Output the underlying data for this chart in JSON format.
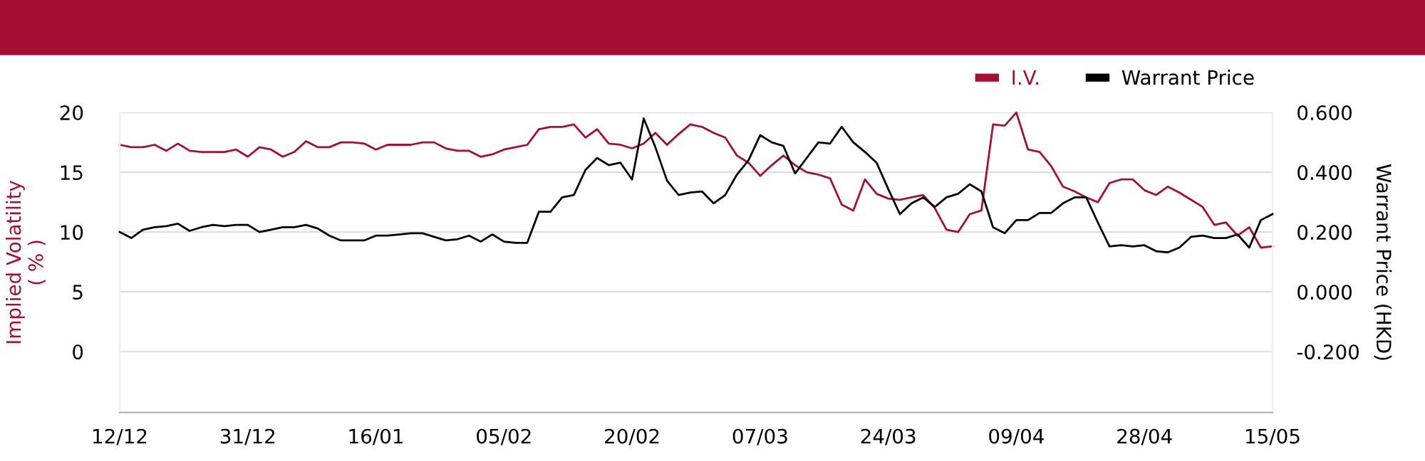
{
  "chart_data": {
    "type": "line",
    "ylabel": "Implied Volatility\n( % )",
    "y2label": "Warrant Price (HKD)",
    "categories": [
      "12/12",
      null,
      null,
      null,
      null,
      null,
      null,
      null,
      null,
      null,
      null,
      "31/12",
      null,
      null,
      null,
      null,
      null,
      null,
      null,
      null,
      null,
      null,
      "16/01",
      null,
      null,
      null,
      null,
      null,
      null,
      null,
      null,
      null,
      null,
      "05/02",
      null,
      null,
      null,
      null,
      null,
      null,
      null,
      null,
      null,
      null,
      "20/02",
      null,
      null,
      null,
      null,
      null,
      null,
      null,
      null,
      null,
      null,
      "07/03",
      null,
      null,
      null,
      null,
      null,
      null,
      null,
      null,
      null,
      null,
      "24/03",
      null,
      null,
      null,
      null,
      null,
      null,
      null,
      null,
      null,
      null,
      "09/04",
      null,
      null,
      null,
      null,
      null,
      null,
      null,
      null,
      null,
      null,
      "28/04",
      null,
      null,
      null,
      null,
      null,
      null,
      null,
      null,
      null,
      null,
      "15/05"
    ],
    "series": [
      {
        "name": "I.V.",
        "color": "#a50f34",
        "values": [
          17.3,
          17.1,
          17.1,
          17.3,
          16.8,
          17.4,
          16.8,
          16.7,
          16.7,
          16.7,
          16.9,
          16.3,
          17.1,
          16.9,
          16.3,
          16.7,
          17.6,
          17.1,
          17.1,
          17.5,
          17.5,
          17.4,
          16.9,
          17.3,
          17.3,
          17.3,
          17.5,
          17.5,
          17.0,
          16.8,
          16.8,
          16.3,
          16.5,
          16.9,
          17.1,
          17.3,
          18.6,
          18.8,
          18.8,
          19.0,
          17.9,
          18.6,
          17.4,
          17.3,
          17.0,
          17.4,
          18.3,
          17.3,
          18.2,
          19.0,
          18.8,
          18.3,
          17.9,
          16.4,
          15.8,
          14.7,
          15.6,
          16.4,
          15.6,
          15.0,
          14.8,
          14.5,
          12.3,
          11.8,
          14.4,
          13.2,
          12.8,
          12.7,
          12.9,
          13.1,
          12.0,
          10.2,
          10.0,
          11.5,
          11.8,
          19.0,
          18.9,
          20.0,
          16.9,
          16.7,
          15.5,
          13.8,
          13.4,
          12.9,
          12.5,
          14.1,
          14.4,
          14.4,
          13.5,
          13.1,
          13.8,
          13.3,
          12.7,
          12.1,
          10.6,
          10.8,
          9.7,
          10.4,
          8.7,
          8.8
        ]
      },
      {
        "name": "Warrant Price",
        "color": "#000000",
        "axis": "y2",
        "values": [
          0.2,
          0.18,
          0.208,
          0.216,
          0.22,
          0.228,
          0.204,
          0.216,
          0.224,
          0.22,
          0.224,
          0.224,
          0.2,
          0.208,
          0.216,
          0.216,
          0.224,
          0.212,
          0.188,
          0.172,
          0.172,
          0.172,
          0.188,
          0.188,
          0.192,
          0.196,
          0.196,
          0.184,
          0.172,
          0.176,
          0.188,
          0.168,
          0.192,
          0.168,
          0.164,
          0.164,
          0.268,
          0.268,
          0.316,
          0.324,
          0.408,
          0.448,
          0.424,
          0.432,
          0.376,
          0.58,
          0.484,
          0.372,
          0.324,
          0.332,
          0.336,
          0.296,
          0.324,
          0.392,
          0.44,
          0.524,
          0.5,
          0.488,
          0.396,
          0.448,
          0.5,
          0.496,
          0.552,
          0.5,
          0.468,
          0.432,
          0.344,
          0.26,
          0.296,
          0.316,
          0.284,
          0.316,
          0.328,
          0.36,
          0.336,
          0.216,
          0.196,
          0.24,
          0.24,
          0.264,
          0.264,
          0.296,
          0.316,
          0.316,
          0.232,
          0.152,
          0.156,
          0.152,
          0.156,
          0.136,
          0.132,
          0.148,
          0.184,
          0.188,
          0.18,
          0.18,
          0.192,
          0.148,
          0.24,
          0.26
        ]
      }
    ],
    "ylim": [
      -5.1,
      20
    ],
    "yticks": [
      0,
      5,
      10,
      15,
      20
    ],
    "y2lim": [
      -0.404,
      0.6
    ],
    "y2ticks": [
      {
        "value": -0.2,
        "label": "-0.200"
      },
      {
        "value": 0,
        "label": "0.000"
      },
      {
        "value": 0.2,
        "label": "0.200"
      },
      {
        "value": 0.4,
        "label": "0.400"
      },
      {
        "value": 0.6,
        "label": "0.600"
      }
    ],
    "grid": "y",
    "legend": "top right",
    "marker": "none",
    "line_style": "solid"
  }
}
